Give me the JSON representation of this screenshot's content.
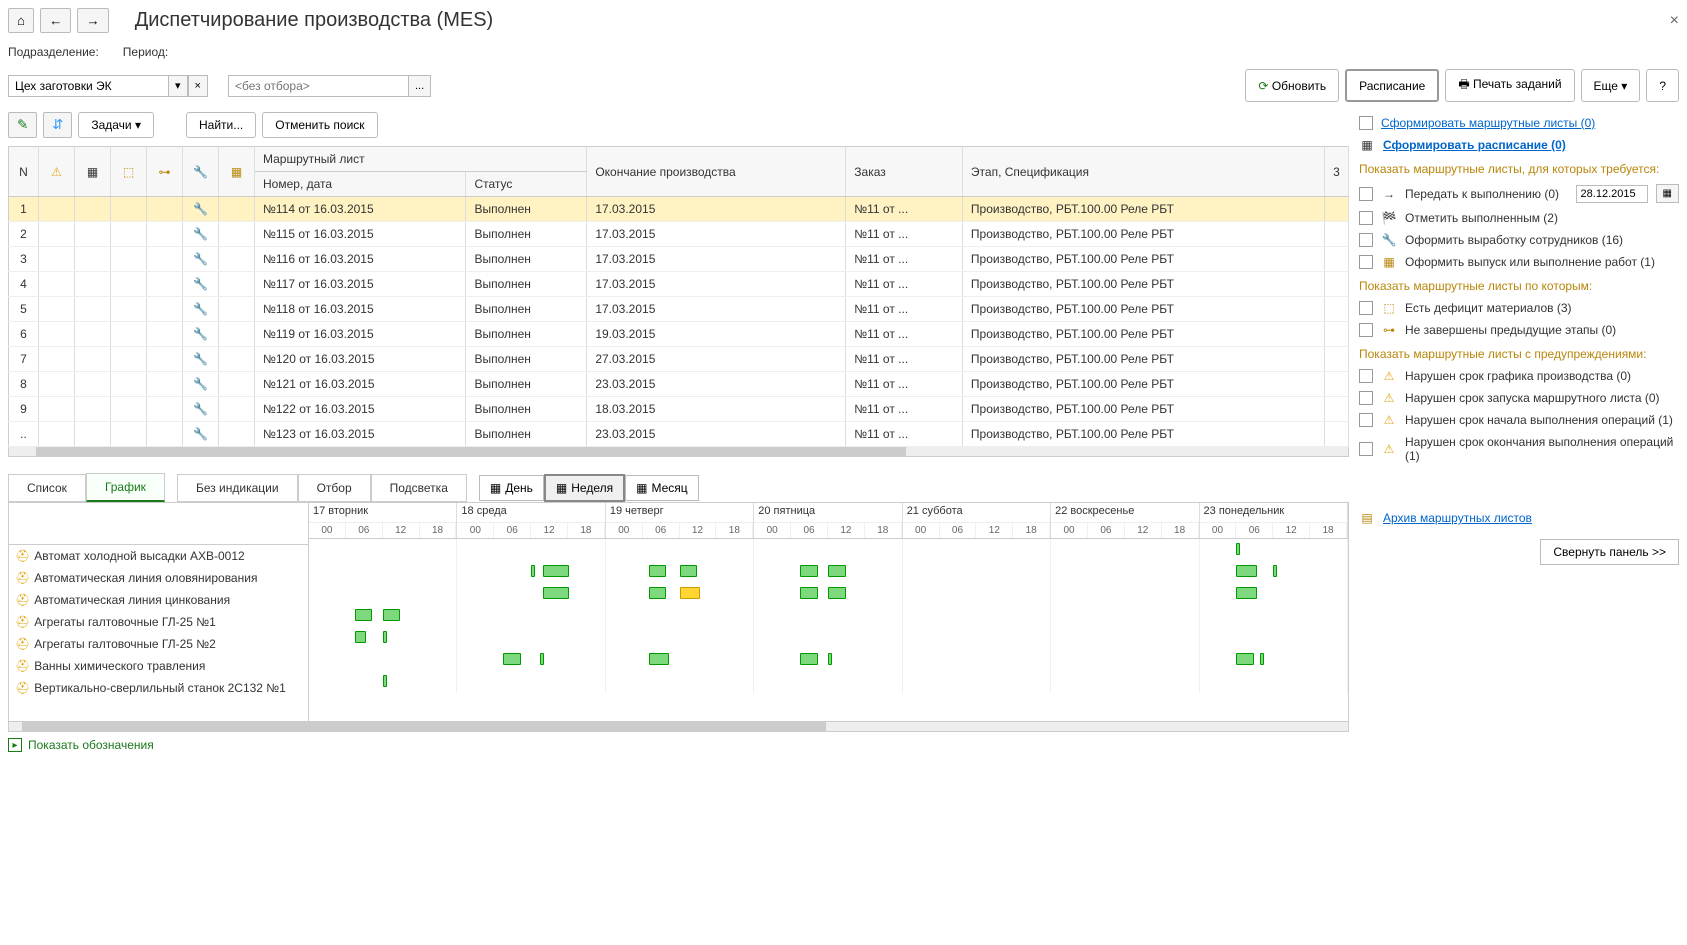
{
  "title": "Диспетчирование производства (MES)",
  "toolbar": {
    "home": "⌂",
    "back": "←",
    "fwd": "→"
  },
  "filters": {
    "dept_label": "Подразделение:",
    "dept_value": "Цех заготовки ЭК",
    "period_label": "Период:",
    "period_placeholder": "<без отбора>"
  },
  "actions": {
    "refresh": "Обновить",
    "schedule": "Расписание",
    "print": "Печать заданий",
    "more": "Еще",
    "tasks": "Задачи",
    "find": "Найти...",
    "cancel_search": "Отменить поиск"
  },
  "table": {
    "headers": {
      "n": "N",
      "route": "Маршрутный лист",
      "num_date": "Номер, дата",
      "status": "Статус",
      "end": "Окончание производства",
      "order": "Заказ",
      "stage": "Этап, Спецификация",
      "count": "3"
    },
    "rows": [
      {
        "n": "1",
        "num": "№114 от 16.03.2015",
        "status": "Выполнен",
        "end": "17.03.2015",
        "order": "№11 от ...",
        "stage": "Производство, РБТ.100.00 Реле РБТ",
        "sel": true
      },
      {
        "n": "2",
        "num": "№115 от 16.03.2015",
        "status": "Выполнен",
        "end": "17.03.2015",
        "order": "№11 от ...",
        "stage": "Производство, РБТ.100.00 Реле РБТ"
      },
      {
        "n": "3",
        "num": "№116 от 16.03.2015",
        "status": "Выполнен",
        "end": "17.03.2015",
        "order": "№11 от ...",
        "stage": "Производство, РБТ.100.00 Реле РБТ"
      },
      {
        "n": "4",
        "num": "№117 от 16.03.2015",
        "status": "Выполнен",
        "end": "17.03.2015",
        "order": "№11 от ...",
        "stage": "Производство, РБТ.100.00 Реле РБТ"
      },
      {
        "n": "5",
        "num": "№118 от 16.03.2015",
        "status": "Выполнен",
        "end": "17.03.2015",
        "order": "№11 от ...",
        "stage": "Производство, РБТ.100.00 Реле РБТ"
      },
      {
        "n": "6",
        "num": "№119 от 16.03.2015",
        "status": "Выполнен",
        "end": "19.03.2015",
        "order": "№11 от ...",
        "stage": "Производство, РБТ.100.00 Реле РБТ"
      },
      {
        "n": "7",
        "num": "№120 от 16.03.2015",
        "status": "Выполнен",
        "end": "27.03.2015",
        "order": "№11 от ...",
        "stage": "Производство, РБТ.100.00 Реле РБТ"
      },
      {
        "n": "8",
        "num": "№121 от 16.03.2015",
        "status": "Выполнен",
        "end": "23.03.2015",
        "order": "№11 от ...",
        "stage": "Производство, РБТ.100.00 Реле РБТ"
      },
      {
        "n": "9",
        "num": "№122 от 16.03.2015",
        "status": "Выполнен",
        "end": "18.03.2015",
        "order": "№11 от ...",
        "stage": "Производство, РБТ.100.00 Реле РБТ"
      },
      {
        "n": "..",
        "num": "№123 от 16.03.2015",
        "status": "Выполнен",
        "end": "23.03.2015",
        "order": "№11 от ...",
        "stage": "Производство, РБТ.100.00 Реле РБТ"
      }
    ]
  },
  "tabs": {
    "list": "Список",
    "chart": "График",
    "noind": "Без индикации",
    "filter": "Отбор",
    "highlight": "Подсветка",
    "day": "День",
    "week": "Неделя",
    "month": "Месяц"
  },
  "gantt": {
    "days": [
      "17 вторник",
      "18 среда",
      "19 четверг",
      "20 пятница",
      "21 суббота",
      "22 воскресенье",
      "23 понедельник"
    ],
    "hours": [
      "00",
      "06",
      "12",
      "18"
    ],
    "resources": [
      "Автомат холодной высадки АХВ-0012",
      "Автоматическая линия оловянирования",
      "Автоматическая линия цинкования",
      "Агрегаты галтовочные ГЛ-25 №1",
      "Агрегаты галтовочные ГЛ-25 №2",
      "Ванны химического травления",
      "Вертикально-сверлильный станок 2С132 №1"
    ],
    "bars": [
      {
        "r": 0,
        "d": 6,
        "h": 1,
        "w": 6,
        "t": "h"
      },
      {
        "r": 1,
        "d": 1,
        "h": 2,
        "w": 6,
        "t": "h"
      },
      {
        "r": 1,
        "d": 1,
        "h": 2,
        "w": 18,
        "o": 8,
        "t": "g"
      },
      {
        "r": 1,
        "d": 2,
        "h": 1,
        "w": 12,
        "o": 4,
        "t": "g"
      },
      {
        "r": 1,
        "d": 2,
        "h": 2,
        "w": 12,
        "t": "g"
      },
      {
        "r": 1,
        "d": 3,
        "h": 1,
        "w": 12,
        "o": 6,
        "t": "g"
      },
      {
        "r": 1,
        "d": 3,
        "h": 2,
        "w": 12,
        "t": "g"
      },
      {
        "r": 1,
        "d": 6,
        "h": 1,
        "w": 14,
        "t": "g"
      },
      {
        "r": 1,
        "d": 6,
        "h": 2,
        "w": 6,
        "t": "h"
      },
      {
        "r": 2,
        "d": 1,
        "h": 2,
        "w": 18,
        "o": 8,
        "t": "g"
      },
      {
        "r": 2,
        "d": 2,
        "h": 1,
        "w": 12,
        "o": 4,
        "t": "g"
      },
      {
        "r": 2,
        "d": 2,
        "h": 2,
        "w": 14,
        "t": "y"
      },
      {
        "r": 2,
        "d": 3,
        "h": 1,
        "w": 12,
        "o": 6,
        "t": "g"
      },
      {
        "r": 2,
        "d": 3,
        "h": 2,
        "w": 12,
        "t": "g"
      },
      {
        "r": 2,
        "d": 6,
        "h": 1,
        "w": 14,
        "t": "g"
      },
      {
        "r": 3,
        "d": 0,
        "h": 1,
        "w": 12,
        "o": 6,
        "t": "g"
      },
      {
        "r": 3,
        "d": 0,
        "h": 2,
        "w": 12,
        "t": "g"
      },
      {
        "r": 4,
        "d": 0,
        "h": 1,
        "w": 8,
        "o": 6,
        "t": "g"
      },
      {
        "r": 4,
        "d": 0,
        "h": 2,
        "w": 6,
        "t": "h"
      },
      {
        "r": 5,
        "d": 1,
        "h": 1,
        "w": 12,
        "o": 6,
        "t": "g"
      },
      {
        "r": 5,
        "d": 1,
        "h": 2,
        "w": 6,
        "o": 6,
        "t": "h"
      },
      {
        "r": 5,
        "d": 2,
        "h": 1,
        "w": 14,
        "o": 4,
        "t": "g"
      },
      {
        "r": 5,
        "d": 3,
        "h": 1,
        "w": 12,
        "o": 6,
        "t": "g"
      },
      {
        "r": 5,
        "d": 3,
        "h": 2,
        "w": 6,
        "t": "h"
      },
      {
        "r": 5,
        "d": 6,
        "h": 1,
        "w": 12,
        "t": "g"
      },
      {
        "r": 5,
        "d": 6,
        "h": 1,
        "w": 6,
        "o": 16,
        "t": "h"
      },
      {
        "r": 6,
        "d": 0,
        "h": 2,
        "w": 3,
        "t": "h"
      }
    ]
  },
  "legend_text": "Показать обозначения",
  "right": {
    "form_routes": "Сформировать маршрутные листы (0)",
    "form_schedule": "Сформировать расписание (0)",
    "hdr1": "Показать маршрутные листы, для которых требуется:",
    "r1": "Передать к выполнению (0)",
    "date": "28.12.2015",
    "r2": "Отметить выполненным (2)",
    "r3": "Оформить выработку сотрудников (16)",
    "r4": "Оформить выпуск или выполнение работ (1)",
    "hdr2": "Показать маршрутные листы по которым:",
    "r5": "Есть дефицит материалов (3)",
    "r6": "Не завершены предыдущие этапы (0)",
    "hdr3": "Показать маршрутные листы с предупреждениями:",
    "r7": "Нарушен срок графика производства (0)",
    "r8": "Нарушен срок запуска маршрутного листа (0)",
    "r9": "Нарушен срок начала выполнения операций (1)",
    "r10": "Нарушен срок окончания выполнения операций (1)",
    "archive": "Архив маршрутных листов",
    "collapse": "Свернуть панель >>"
  }
}
